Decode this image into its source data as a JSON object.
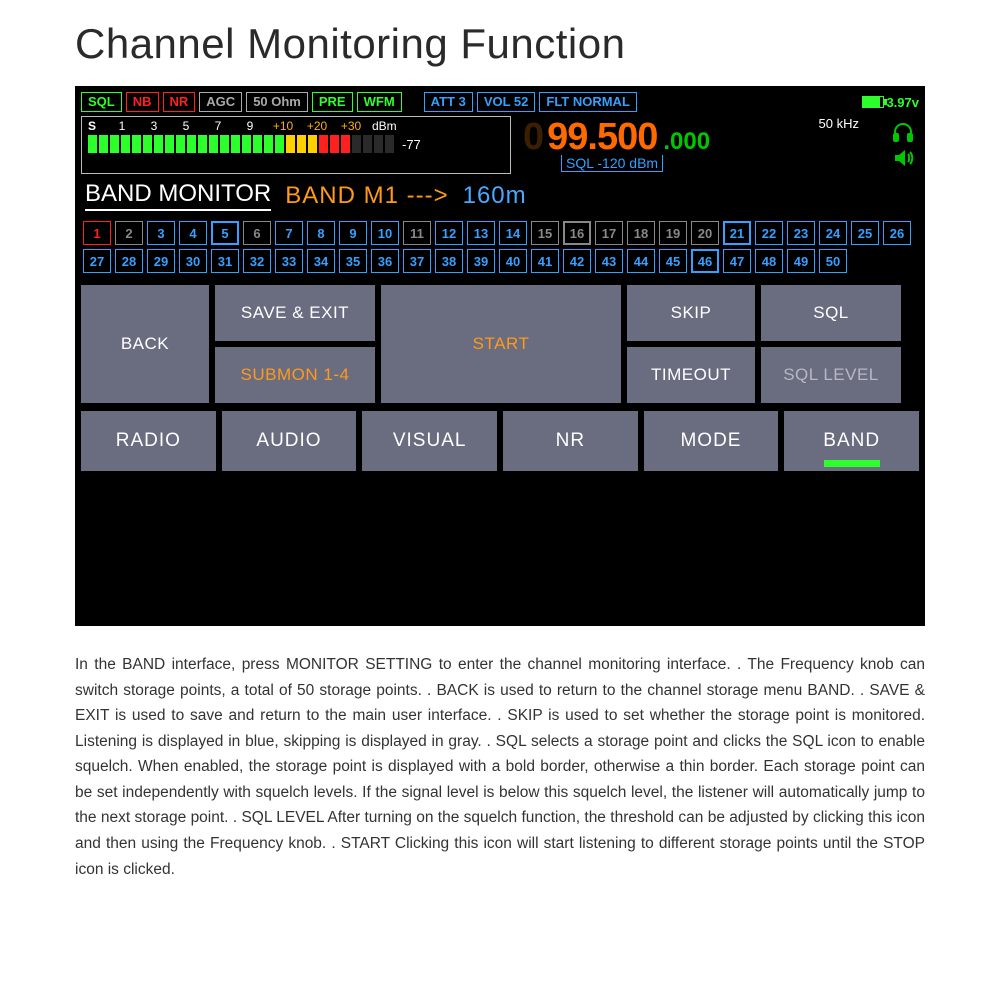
{
  "title": "Channel Monitoring Function",
  "indicators": {
    "sql": {
      "label": "SQL",
      "style": "green"
    },
    "nb": {
      "label": "NB",
      "style": "red"
    },
    "nr": {
      "label": "NR",
      "style": "red"
    },
    "agc": {
      "label": "AGC",
      "style": "gray"
    },
    "ohm": {
      "label": "50 Ohm",
      "style": "gray"
    },
    "pre": {
      "label": "PRE",
      "style": "green"
    },
    "wfm": {
      "label": "WFM",
      "style": "green"
    },
    "att": {
      "label": "ATT 3",
      "style": "blue"
    },
    "vol": {
      "label": "VOL 52",
      "style": "blue"
    },
    "flt": {
      "label": "FLT NORMAL",
      "style": "blue"
    }
  },
  "battery": "3.97v",
  "smeter": {
    "s_label": "S",
    "nums": [
      "1",
      "3",
      "5",
      "7",
      "9"
    ],
    "plus": [
      "+10",
      "+20",
      "+30"
    ],
    "unit": "dBm",
    "value": "-77",
    "bars": [
      "g",
      "g",
      "g",
      "g",
      "g",
      "g",
      "g",
      "g",
      "g",
      "g",
      "g",
      "g",
      "g",
      "g",
      "g",
      "g",
      "g",
      "g",
      "y",
      "y",
      "y",
      "r",
      "r",
      "r",
      "off",
      "off",
      "off",
      "off"
    ]
  },
  "freq": {
    "ghost": "0",
    "main": "99.500",
    "sub": ".000",
    "khz": "50 kHz",
    "sql": "SQL -120 dBm"
  },
  "band_row": {
    "label": "BAND MONITOR",
    "band": "BAND  M1  --->",
    "meter": "160m"
  },
  "channels": [
    {
      "n": "1",
      "cls": "sel"
    },
    {
      "n": "2",
      "cls": "skip"
    },
    {
      "n": "3",
      "cls": ""
    },
    {
      "n": "4",
      "cls": ""
    },
    {
      "n": "5",
      "cls": "bold"
    },
    {
      "n": "6",
      "cls": "skip"
    },
    {
      "n": "7",
      "cls": ""
    },
    {
      "n": "8",
      "cls": ""
    },
    {
      "n": "9",
      "cls": ""
    },
    {
      "n": "10",
      "cls": ""
    },
    {
      "n": "11",
      "cls": "skip"
    },
    {
      "n": "12",
      "cls": ""
    },
    {
      "n": "13",
      "cls": ""
    },
    {
      "n": "14",
      "cls": ""
    },
    {
      "n": "15",
      "cls": "skip"
    },
    {
      "n": "16",
      "cls": "skip bold"
    },
    {
      "n": "17",
      "cls": "skip"
    },
    {
      "n": "18",
      "cls": "skip"
    },
    {
      "n": "19",
      "cls": "skip"
    },
    {
      "n": "20",
      "cls": "skip"
    },
    {
      "n": "21",
      "cls": "bold"
    },
    {
      "n": "22",
      "cls": ""
    },
    {
      "n": "23",
      "cls": ""
    },
    {
      "n": "24",
      "cls": ""
    },
    {
      "n": "25",
      "cls": ""
    },
    {
      "n": "26",
      "cls": ""
    },
    {
      "n": "27",
      "cls": ""
    },
    {
      "n": "28",
      "cls": ""
    },
    {
      "n": "29",
      "cls": ""
    },
    {
      "n": "30",
      "cls": ""
    },
    {
      "n": "31",
      "cls": ""
    },
    {
      "n": "32",
      "cls": ""
    },
    {
      "n": "33",
      "cls": ""
    },
    {
      "n": "34",
      "cls": ""
    },
    {
      "n": "35",
      "cls": ""
    },
    {
      "n": "36",
      "cls": ""
    },
    {
      "n": "37",
      "cls": ""
    },
    {
      "n": "38",
      "cls": ""
    },
    {
      "n": "39",
      "cls": ""
    },
    {
      "n": "40",
      "cls": ""
    },
    {
      "n": "41",
      "cls": ""
    },
    {
      "n": "42",
      "cls": ""
    },
    {
      "n": "43",
      "cls": ""
    },
    {
      "n": "44",
      "cls": ""
    },
    {
      "n": "45",
      "cls": ""
    },
    {
      "n": "46",
      "cls": "bold"
    },
    {
      "n": "47",
      "cls": ""
    },
    {
      "n": "48",
      "cls": ""
    },
    {
      "n": "49",
      "cls": ""
    },
    {
      "n": "50",
      "cls": ""
    }
  ],
  "actions": {
    "back": "BACK",
    "save_exit": "SAVE & EXIT",
    "submon": "SUBMON  1-4",
    "start": "START",
    "skip": "SKIP",
    "timeout": "TIMEOUT",
    "sql": "SQL",
    "sql_level": "SQL  LEVEL"
  },
  "tabs": {
    "radio": "RADIO",
    "audio": "AUDIO",
    "visual": "VISUAL",
    "nr": "NR",
    "mode": "MODE",
    "band": "BAND"
  },
  "description": "In the BAND interface, press MONITOR SETTING to enter the channel monitoring interface. . The Frequency knob can switch storage points, a total of 50 storage points. . BACK is used to return to the channel storage menu BAND. . SAVE & EXIT is used to save and return to the main user interface. . SKIP is used to set whether the storage point is monitored. Listening is displayed in blue, skipping is displayed in gray. . SQL selects a storage point and clicks the SQL icon to enable squelch. When enabled, the storage point is displayed with a bold border, otherwise a thin border. Each storage point can be set independently with squelch levels. If the signal level is below this squelch level, the listener will automatically jump to the next storage point. . SQL LEVEL After turning on the squelch function, the threshold can be adjusted by clicking this icon and then using the Frequency knob. . START Clicking this icon will start listening to different storage points until the STOP icon is clicked."
}
